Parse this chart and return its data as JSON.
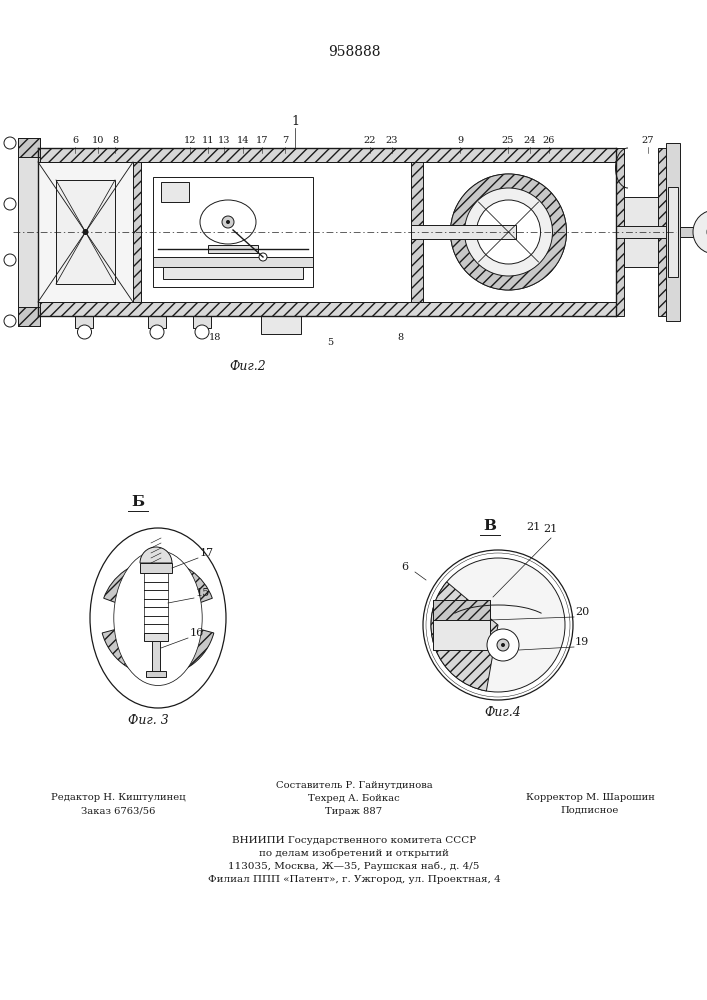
{
  "patent_number": "958888",
  "fig2_label": "Фиг.2",
  "fig3_label": "Фиг. 3",
  "fig4_label": "Фиг.4",
  "footer_line1_left": "Редактор Н. Киштулинец",
  "footer_line2_left": "Заказ 6763/56",
  "footer_line1_center": "Составитель Р. Гайнутдинова",
  "footer_line2_center": "Техред А. Бойкас",
  "footer_line3_center": "Тираж 887",
  "footer_line1_right": "Корректор М. Шарошин",
  "footer_line2_right": "Подписное",
  "vniiipi_line1": "ВНИИПИ Государственного комитета СССР",
  "vniiipi_line2": "по делам изобретений и открытий",
  "vniiipi_line3": "113035, Москва, Ж—35, Раушская наб., д. 4/5",
  "vniiipi_line4": "Филиал ППП «Патент», г. Ужгород, ул. Проектная, 4",
  "bg_color": "#ffffff",
  "line_color": "#1a1a1a"
}
